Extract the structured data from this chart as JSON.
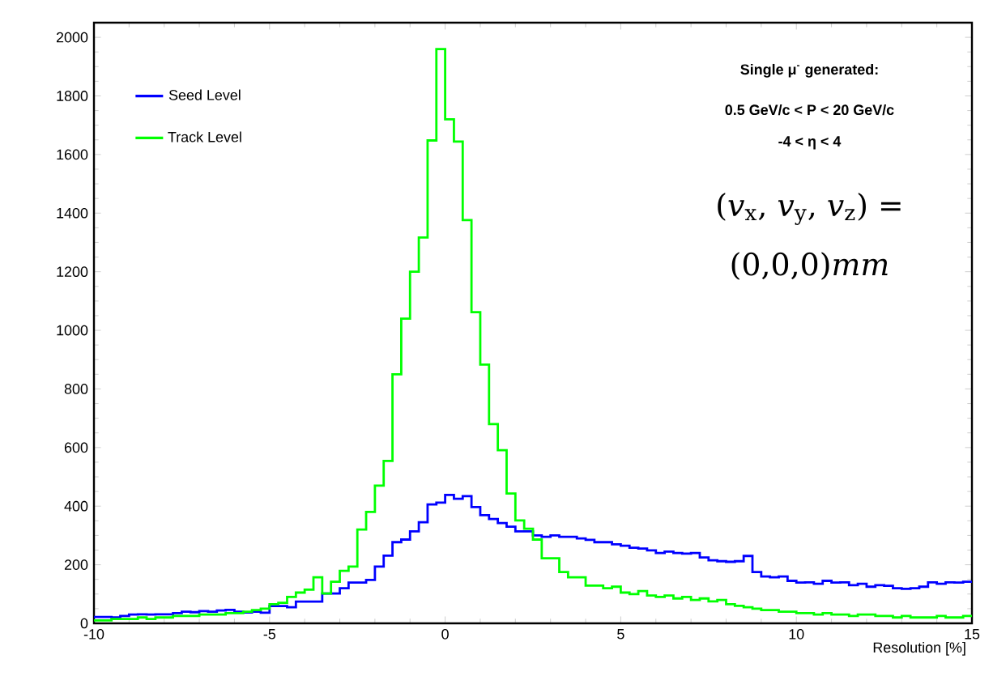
{
  "chart_data": {
    "type": "histogram",
    "xlabel": "Resolution [%]",
    "bins": [
      -10,
      -9.75,
      -9.5,
      -9.25,
      -9,
      -8.75,
      -8.5,
      -8.25,
      -8,
      -7.75,
      -7.5,
      -7.25,
      -7,
      -6.75,
      -6.5,
      -6.25,
      -6,
      -5.75,
      -5.5,
      -5.25,
      -5,
      -4.75,
      -4.5,
      -4.25,
      -4,
      -3.75,
      -3.5,
      -3.25,
      -3,
      -2.75,
      -2.5,
      -2.25,
      -2,
      -1.75,
      -1.5,
      -1.25,
      -1,
      -0.75,
      -0.5,
      -0.25,
      0,
      0.25,
      0.5,
      0.75,
      1,
      1.25,
      1.5,
      1.75,
      2,
      2.25,
      2.5,
      2.75,
      3,
      3.25,
      3.5,
      3.75,
      4,
      4.25,
      4.5,
      4.75,
      5,
      5.25,
      5.5,
      5.75,
      6,
      6.25,
      6.5,
      6.75,
      7,
      7.25,
      7.5,
      7.75,
      8,
      8.25,
      8.5,
      8.75,
      9,
      9.25,
      9.5,
      9.75,
      10,
      10.25,
      10.5,
      10.75,
      11,
      11.25,
      11.5,
      11.75,
      12,
      12.25,
      12.5,
      12.75,
      13,
      13.25,
      13.5,
      13.75,
      14,
      14.25,
      14.5,
      14.75,
      15
    ],
    "series": [
      {
        "name": "Seed Level",
        "color": "#0000ff",
        "values": [
          22,
          22,
          20,
          25,
          30,
          31,
          30,
          31,
          31,
          35,
          40,
          38,
          42,
          40,
          44,
          46,
          40,
          37,
          40,
          36,
          59,
          59,
          55,
          74,
          74,
          74,
          102,
          102,
          120,
          139,
          139,
          148,
          194,
          231,
          277,
          286,
          314,
          345,
          406,
          412,
          438,
          425,
          434,
          397,
          369,
          356,
          342,
          330,
          314,
          314,
          300,
          295,
          300,
          295,
          295,
          290,
          285,
          277,
          277,
          270,
          265,
          258,
          255,
          249,
          240,
          245,
          240,
          238,
          240,
          225,
          215,
          212,
          210,
          212,
          230,
          175,
          160,
          157,
          160,
          145,
          139,
          140,
          135,
          145,
          139,
          140,
          130,
          135,
          125,
          130,
          128,
          120,
          118,
          120,
          125,
          140,
          135,
          140,
          139,
          142
        ]
      },
      {
        "name": "Track Level",
        "color": "#00ff00",
        "values": [
          10,
          10,
          15,
          15,
          15,
          20,
          15,
          20,
          20,
          25,
          25,
          25,
          30,
          30,
          30,
          35,
          35,
          40,
          45,
          50,
          65,
          70,
          90,
          105,
          115,
          157,
          102,
          142,
          179,
          194,
          320,
          380,
          470,
          554,
          850,
          1040,
          1200,
          1317,
          1648,
          1960,
          1720,
          1644,
          1376,
          1062,
          883,
          680,
          591,
          443,
          351,
          323,
          286,
          222,
          222,
          175,
          157,
          157,
          129,
          129,
          120,
          125,
          105,
          100,
          110,
          95,
          90,
          95,
          85,
          90,
          80,
          85,
          75,
          80,
          65,
          60,
          55,
          50,
          45,
          45,
          40,
          40,
          35,
          35,
          30,
          35,
          30,
          30,
          25,
          30,
          30,
          25,
          25,
          20,
          25,
          20,
          20,
          20,
          25,
          20,
          20,
          25
        ]
      }
    ],
    "xlim": [
      -10,
      15
    ],
    "ylim": [
      0,
      2050
    ],
    "xticks": [
      -10,
      -5,
      0,
      5,
      10,
      15
    ],
    "yticks": [
      0,
      200,
      400,
      600,
      800,
      1000,
      1200,
      1400,
      1600,
      1800,
      2000
    ],
    "grid": false,
    "legend": "top left",
    "annotations": [
      "Single μ$^{-}$ generated:",
      "0.5 GeV/c < P < 20 GeV/c",
      "-4 < η < 4",
      "(*v*$_{x}$, *v*$_{y}$, *v*$_{z}$) =",
      "(0,0,0)*mm*"
    ]
  }
}
